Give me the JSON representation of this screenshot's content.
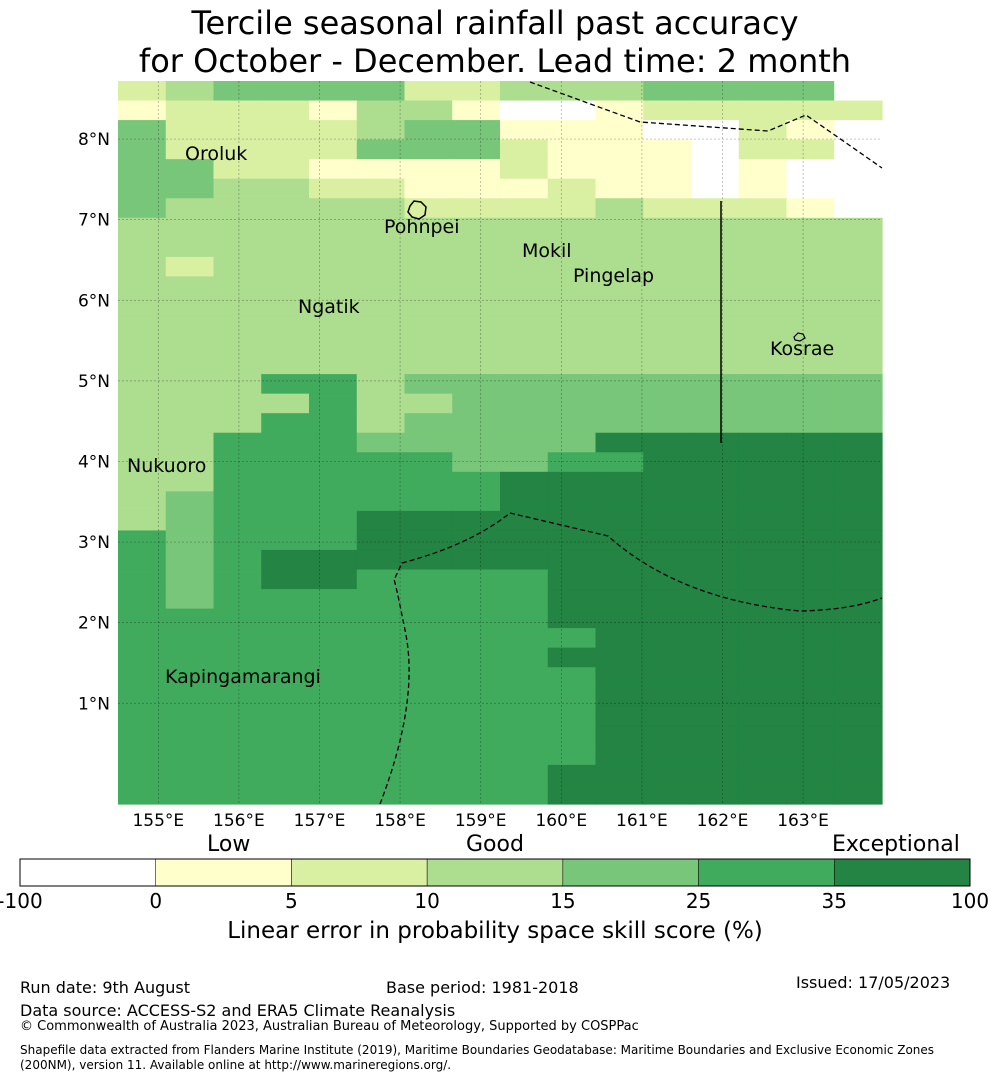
{
  "title": {
    "line1": "Tercile seasonal rainfall past accuracy",
    "line2": "for October - December. Lead time: 2 month"
  },
  "map": {
    "lon_labels": [
      "155°E",
      "156°E",
      "157°E",
      "158°E",
      "159°E",
      "160°E",
      "161°E",
      "162°E",
      "163°E"
    ],
    "lat_labels": [
      "8°N",
      "7°N",
      "6°N",
      "5°N",
      "4°N",
      "3°N",
      "2°N",
      "1°N"
    ],
    "places": [
      "Oroluk",
      "Pohnpei",
      "Mokil",
      "Pingelap",
      "Ngatik",
      "Kosrae",
      "Nukuoro",
      "Kapingamarangi"
    ],
    "grid_rows": [
      "2344442233344440",
      "1222133100122222",
      "4222234411100210",
      "4222244421110220",
      "4422111121110100",
      "4433221112110100",
      "4333332222322210",
      "3333333333333333",
      "3333333333333333",
      "3233333333333333",
      "3333333333333333",
      "3333333333333333",
      "3333333333333333",
      "3333333333333333",
      "3333333333333333",
      "3335534444444444",
      "3333533444444444",
      "3335534444444444",
      "3355544444666666",
      "3355555445566666",
      "3355555566666666",
      "3455555566666666",
      "3455566666666666",
      "5455566666666666",
      "5456666666666666",
      "5456655556666666",
      "5455555556666666",
      "5555555556666666",
      "5555555555666666",
      "5555555556666666",
      "5555555555666666",
      "5555555555666666",
      "5555555555666666",
      "5555555555666666",
      "5555555555666666",
      "5555555556666666",
      "5555555556666666"
    ],
    "grid_hidden_note": ""
  },
  "colorbar": {
    "categories": [
      "Low",
      "Good",
      "Exceptional"
    ],
    "ticks": [
      "-100",
      "0",
      "5",
      "10",
      "15",
      "25",
      "35",
      "100"
    ],
    "colors": [
      "#ffffff",
      "#ffffcc",
      "#d9f0a3",
      "#addd8e",
      "#78c679",
      "#41ab5d",
      "#238443"
    ],
    "title": "Linear error in probability space skill score (%)"
  },
  "footer": {
    "run_date": "Run date: 9th August",
    "base_period": "Base period: 1981-2018",
    "issued": "Issued: 17/05/2023",
    "data_source": "Data source: ACCESS-S2 and ERA5 Climate Reanalysis",
    "copyright": "© Commonwealth of Australia 2023, Australian Bureau of Meteorology, Supported by COSPPac",
    "shapefile": "Shapefile data extracted from Flanders Marine Institute (2019), Maritime Boundaries Geodatabase: Maritime Boundaries and Exclusive Economic Zones (200NM), version 11. Available online at http://www.marineregions.org/."
  }
}
